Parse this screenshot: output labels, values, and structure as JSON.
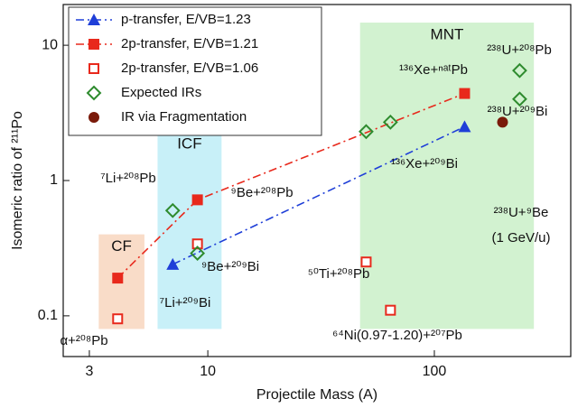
{
  "chart_data": {
    "type": "scatter",
    "x_label": "Projectile Mass (A)",
    "y_label": "Isomeric ratio of ²¹¹Po",
    "xscale": "log",
    "yscale": "log",
    "xlim": [
      2.3,
      400
    ],
    "ylim": [
      0.05,
      20
    ],
    "xticks": [
      3,
      10,
      100
    ],
    "yticks": [
      0.1,
      1,
      10
    ],
    "legend": "upper left",
    "regions": [
      {
        "label": "CF",
        "xlim": [
          3.3,
          5.25
        ],
        "ylim": [
          0.08,
          0.4
        ],
        "color": "#f9dcc8"
      },
      {
        "label": "ICF",
        "xlim": [
          6.0,
          11.5
        ],
        "ylim": [
          0.08,
          2.3
        ],
        "color": "#c8f0f8"
      },
      {
        "label": "MNT",
        "xlim": [
          47,
          275
        ],
        "ylim": [
          0.08,
          14.7
        ],
        "color": "#d2f2d0"
      }
    ],
    "series": [
      {
        "name": "p-transfer, E/VB=1.23",
        "color": "#1f3fd8",
        "marker": "triangle",
        "line": "dash-dot",
        "x": [
          7,
          136
        ],
        "values": [
          0.24,
          2.5
        ]
      },
      {
        "name": "2p-transfer, E/VB=1.21",
        "color": "#e8291c",
        "marker": "square",
        "line": "dash-dot",
        "x": [
          4,
          9,
          136
        ],
        "values": [
          0.19,
          0.72,
          4.4
        ]
      },
      {
        "name": "2p-transfer, E/VB=1.06",
        "color": "#e8291c",
        "marker": "open-square",
        "line": "none",
        "x": [
          4,
          9,
          50,
          64
        ],
        "values": [
          0.095,
          0.34,
          0.25,
          0.11
        ]
      },
      {
        "name": "Expected IRs",
        "color": "#2e8b2e",
        "marker": "open-diamond",
        "line": "none",
        "x": [
          7,
          9,
          50,
          64,
          238,
          238
        ],
        "values": [
          0.6,
          0.29,
          2.3,
          2.7,
          6.5,
          4.0
        ]
      },
      {
        "name": "IR via Fragmentation",
        "color": "#7a1a0a",
        "marker": "circle",
        "line": "none",
        "x": [
          200
        ],
        "values": [
          2.7
        ]
      }
    ],
    "annotations": [
      "⁷Li+²⁰⁸Pb",
      "⁹Be+²⁰⁸Pb",
      "⁹Be+²⁰⁹Bi",
      "⁷Li+²⁰⁹Bi",
      "α+²⁰⁸Pb",
      "⁵⁰Ti+²⁰⁸Pb",
      "⁶⁴Ni(0.97-1.20)+²⁰⁷Pb",
      "¹³⁶Xe+ⁿᵃᵗPb",
      "²³⁸U+²⁰⁸Pb",
      "²³⁸U+²⁰⁹Bi",
      "¹³⁶Xe+²⁰⁹Bi",
      "²³⁸U+⁹Be",
      "(1 GeV/u)"
    ]
  }
}
